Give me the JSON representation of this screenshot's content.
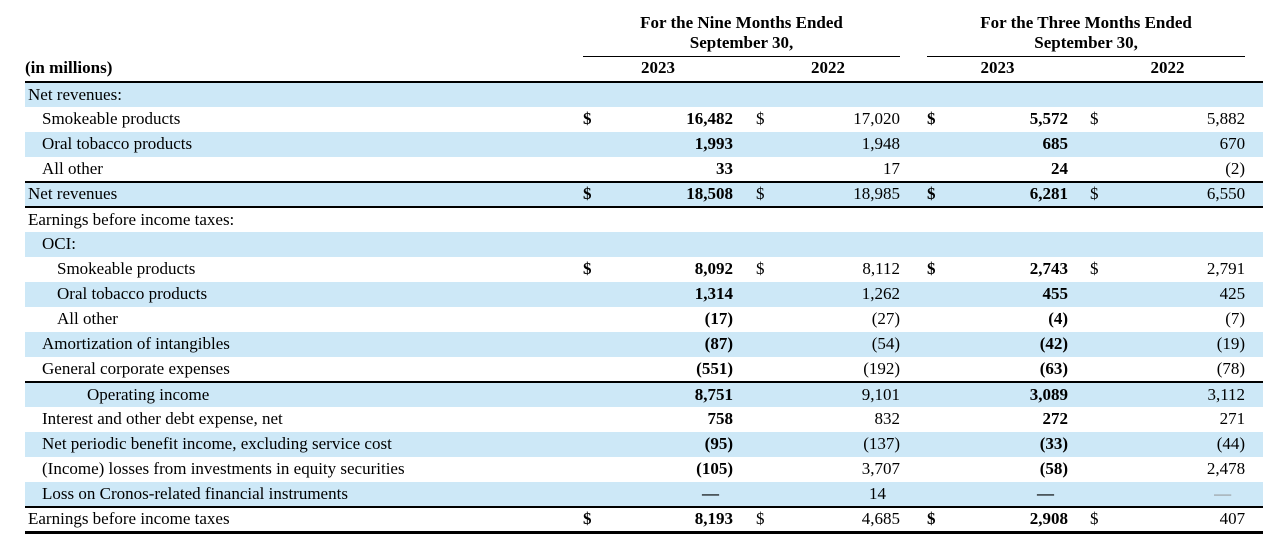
{
  "table": {
    "unit_label": "(in millions)",
    "currency_symbol": "$",
    "col_groups": [
      {
        "title_line1": "For the Nine Months Ended",
        "title_line2": "September 30,",
        "years": [
          "2023",
          "2022"
        ]
      },
      {
        "title_line1": "For the Three Months Ended",
        "title_line2": "September 30,",
        "years": [
          "2023",
          "2022"
        ]
      }
    ],
    "columns": [
      "Nine Months 2023",
      "Nine Months 2022",
      "Three Months 2023",
      "Three Months 2022"
    ],
    "rows": [
      {
        "label": "Net revenues:",
        "indent": 0,
        "shade": true,
        "dollar": false,
        "values": null
      },
      {
        "label": "Smokeable products",
        "indent": 1,
        "shade": false,
        "dollar": true,
        "values": [
          "16,482",
          "17,020",
          "5,572",
          "5,882"
        ]
      },
      {
        "label": "Oral tobacco products",
        "indent": 1,
        "shade": true,
        "dollar": false,
        "values": [
          "1,993",
          "1,948",
          "685",
          "670"
        ]
      },
      {
        "label": "All other",
        "indent": 1,
        "shade": false,
        "dollar": false,
        "values": [
          "33",
          "17",
          "24",
          "(2)"
        ]
      },
      {
        "label": "Net revenues",
        "indent": 0,
        "shade": true,
        "dollar": true,
        "values": [
          "18,508",
          "18,985",
          "6,281",
          "6,550"
        ],
        "border_top": true,
        "border_bottom": true
      },
      {
        "label": "Earnings before income taxes:",
        "indent": 0,
        "shade": false,
        "dollar": false,
        "values": null
      },
      {
        "label": "OCI:",
        "indent": 1,
        "shade": true,
        "dollar": false,
        "values": null
      },
      {
        "label": "Smokeable products",
        "indent": 2,
        "shade": false,
        "dollar": true,
        "values": [
          "8,092",
          "8,112",
          "2,743",
          "2,791"
        ]
      },
      {
        "label": "Oral tobacco products",
        "indent": 2,
        "shade": true,
        "dollar": false,
        "values": [
          "1,314",
          "1,262",
          "455",
          "425"
        ]
      },
      {
        "label": "All other",
        "indent": 2,
        "shade": false,
        "dollar": false,
        "values": [
          "(17)",
          "(27)",
          "(4)",
          "(7)"
        ]
      },
      {
        "label": "Amortization of intangibles",
        "indent": 1,
        "shade": true,
        "dollar": false,
        "values": [
          "(87)",
          "(54)",
          "(42)",
          "(19)"
        ]
      },
      {
        "label": "General corporate expenses",
        "indent": 1,
        "shade": false,
        "dollar": false,
        "values": [
          "(551)",
          "(192)",
          "(63)",
          "(78)"
        ]
      },
      {
        "label": "Operating income",
        "indent": 4,
        "shade": true,
        "dollar": false,
        "values": [
          "8,751",
          "9,101",
          "3,089",
          "3,112"
        ],
        "border_top": true
      },
      {
        "label": "Interest and other debt expense, net",
        "indent": 1,
        "shade": false,
        "dollar": false,
        "values": [
          "758",
          "832",
          "272",
          "271"
        ]
      },
      {
        "label": "Net periodic benefit income, excluding service cost",
        "indent": 1,
        "shade": true,
        "dollar": false,
        "values": [
          "(95)",
          "(137)",
          "(33)",
          "(44)"
        ]
      },
      {
        "label": "(Income) losses from investments in equity securities",
        "indent": 1,
        "shade": false,
        "dollar": false,
        "values": [
          "(105)",
          "3,707",
          "(58)",
          "2,478"
        ]
      },
      {
        "label": "Loss on Cronos-related financial instruments",
        "indent": 1,
        "shade": true,
        "dollar": false,
        "values": [
          "—",
          "14",
          "—",
          "—"
        ],
        "muted_cols": [
          3
        ],
        "inset": true
      },
      {
        "label": "Earnings before income taxes",
        "indent": 0,
        "shade": false,
        "dollar": true,
        "values": [
          "8,193",
          "4,685",
          "2,908",
          "407"
        ],
        "border_top": true,
        "final": true
      }
    ],
    "bold_year_columns": [
      0,
      2
    ]
  },
  "colors": {
    "row_stripe": "#cde8f7",
    "rule": "#000000",
    "text": "#000000",
    "muted_dash": "#8a8a8a"
  }
}
